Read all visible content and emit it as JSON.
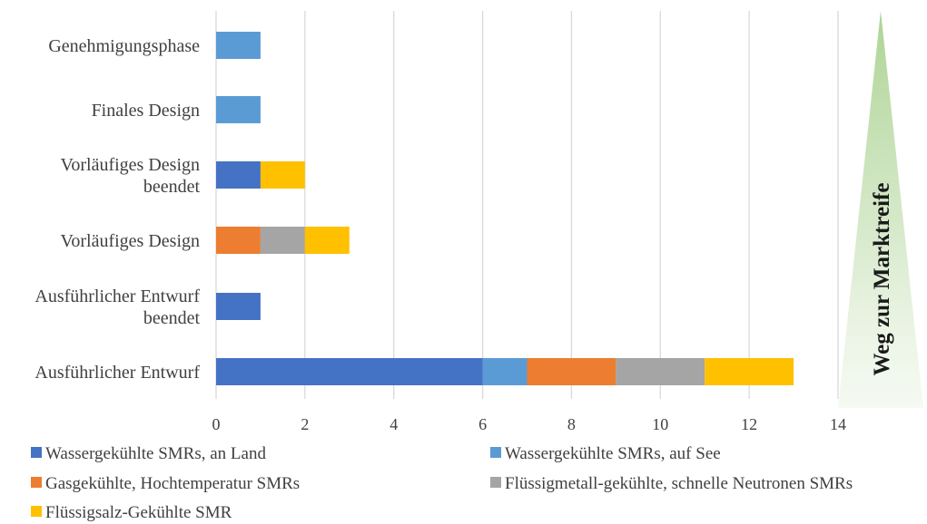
{
  "chart_data": {
    "type": "bar",
    "orientation": "horizontal",
    "stacked": true,
    "categories": [
      [
        "Genehmigungsphase"
      ],
      [
        "Finales Design"
      ],
      [
        "Vorläufiges Design",
        "beendet"
      ],
      [
        "Vorläufiges Design"
      ],
      [
        "Ausführlicher Entwurf",
        "beendet"
      ],
      [
        "Ausführlicher Entwurf"
      ]
    ],
    "series": [
      {
        "name": "Wassergekühlte SMRs, an Land",
        "color": "#4472C4",
        "values": [
          0,
          0,
          1,
          0,
          1,
          6
        ]
      },
      {
        "name": "Wassergekühlte SMRs, auf See",
        "color": "#5B9BD5",
        "values": [
          1,
          1,
          0,
          0,
          0,
          1
        ]
      },
      {
        "name": "Gasgekühlte, Hochtemperatur SMRs",
        "color": "#ED7D31",
        "values": [
          0,
          0,
          0,
          1,
          0,
          2
        ]
      },
      {
        "name": "Flüssigmetall-gekühlte, schnelle Neutronen SMRs",
        "color": "#A5A5A5",
        "values": [
          0,
          0,
          0,
          1,
          0,
          2
        ]
      },
      {
        "name": "Flüssigsalz-Gekühlte SMR",
        "color": "#FFC000",
        "values": [
          0,
          0,
          1,
          1,
          0,
          2
        ]
      }
    ],
    "xlim": [
      0,
      14
    ],
    "xticks": [
      "0",
      "2",
      "4",
      "6",
      "8",
      "10",
      "12",
      "14"
    ],
    "grid": "vertical",
    "legend_position": "bottom",
    "side_label": "Weg zur Marktreife"
  }
}
